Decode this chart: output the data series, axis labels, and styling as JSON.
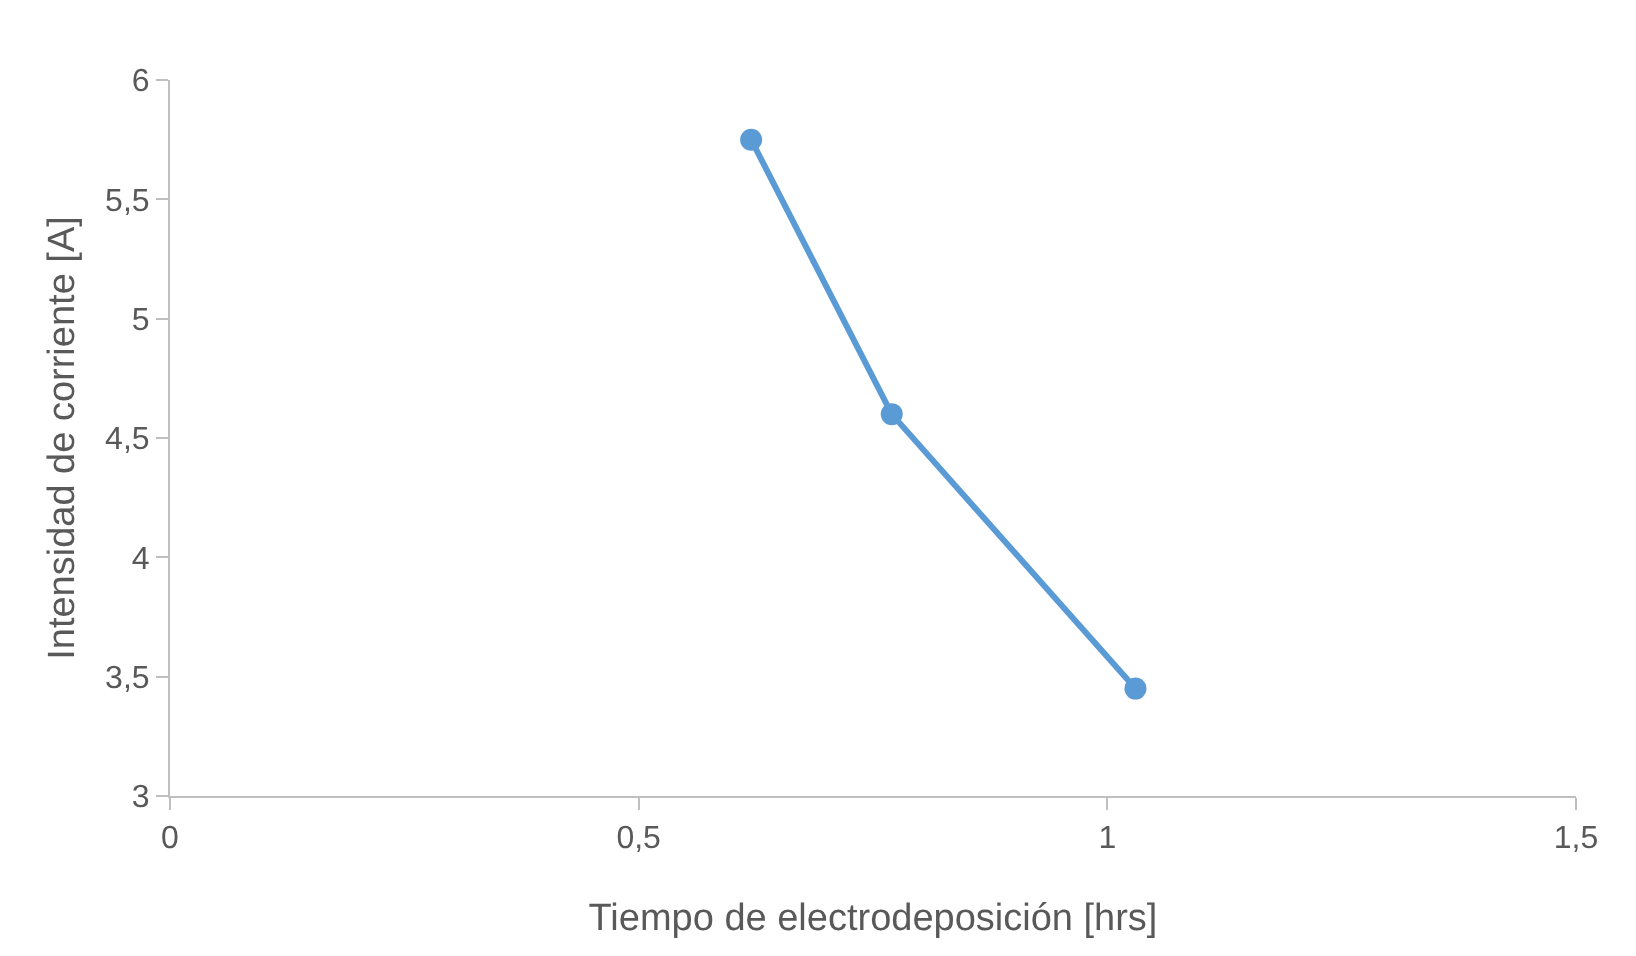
{
  "chart_data": {
    "type": "line",
    "xlabel": "Tiempo de electrodeposición [hrs]",
    "ylabel": "Intensidad de corriente [A]",
    "x": [
      0.62,
      0.77,
      1.03
    ],
    "series": [
      {
        "color": "#5b9bd5",
        "values": [
          5.75,
          4.6,
          3.45
        ]
      }
    ],
    "xlim": [
      0,
      1.5
    ],
    "xticks": [
      0,
      {
        "value": 0.5,
        "label": "0,5"
      },
      1,
      {
        "value": 1.5,
        "label": "1,5"
      }
    ],
    "ylim": [
      3,
      6
    ],
    "yticks": [
      3,
      {
        "value": 3.5,
        "label": "3,5"
      },
      4,
      {
        "value": 4.5,
        "label": "4,5"
      },
      5,
      {
        "value": 5.5,
        "label": "5,5"
      },
      6
    ],
    "grid": false,
    "legend": false,
    "marker": "circle",
    "line_style": "solid"
  }
}
